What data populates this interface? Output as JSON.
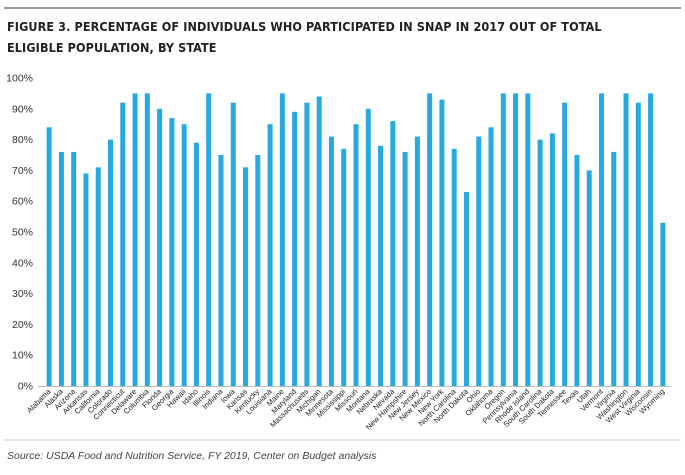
{
  "chart_data": {
    "type": "bar",
    "title": "FIGURE 3. PERCENTAGE OF INDIVIDUALS WHO PARTICIPATED IN SNAP IN 2017 OUT OF TOTAL ELIGIBLE POPULATION, BY STATE",
    "source": "Source: USDA Food and Nutrition Service, FY 2019, Center on Budget analysis",
    "categories": [
      "Alabama",
      "Alaska",
      "Arizona",
      "Arkansas",
      "California",
      "Colorado",
      "Connecticut",
      "Delaware",
      "Columbia",
      "Florida",
      "Georgia",
      "Hawaii",
      "Idaho",
      "Illinois",
      "Indiana",
      "Iowa",
      "Kansas",
      "Kentucky",
      "Louisiana",
      "Maine",
      "Maryland",
      "Massachusetts",
      "Michigan",
      "Minnesota",
      "Mississippi",
      "Missouri",
      "Montana",
      "Nebraska",
      "Nevada",
      "New Hampshire",
      "New Jersey",
      "New Mexico",
      "New York",
      "North Carolina",
      "North Dakota",
      "Ohio",
      "Oklahoma",
      "Oregon",
      "Pennsylvania",
      "Rhode Island",
      "South Carolina",
      "South Dakota",
      "Tennessee",
      "Texas",
      "Utah",
      "Vermont",
      "Virginia",
      "Washington",
      "West Virginia",
      "Wisconsin",
      "Wyoming"
    ],
    "values": [
      84,
      76,
      76,
      69,
      71,
      80,
      92,
      95,
      95,
      90,
      87,
      85,
      79,
      95,
      75,
      92,
      71,
      75,
      85,
      95,
      89,
      92,
      94,
      81,
      77,
      85,
      90,
      78,
      86,
      76,
      81,
      95,
      93,
      77,
      63,
      81,
      84,
      95,
      95,
      95,
      80,
      82,
      92,
      75,
      70,
      95,
      76,
      95,
      92,
      95,
      53
    ],
    "yticks": [
      "0%",
      "10%",
      "20%",
      "30%",
      "40%",
      "50%",
      "60%",
      "70%",
      "80%",
      "90%",
      "100%"
    ],
    "ylim": [
      0,
      100
    ],
    "xlabel": "",
    "ylabel": "",
    "grid": false,
    "legend": "none",
    "bar_color": "#27a9e1"
  }
}
